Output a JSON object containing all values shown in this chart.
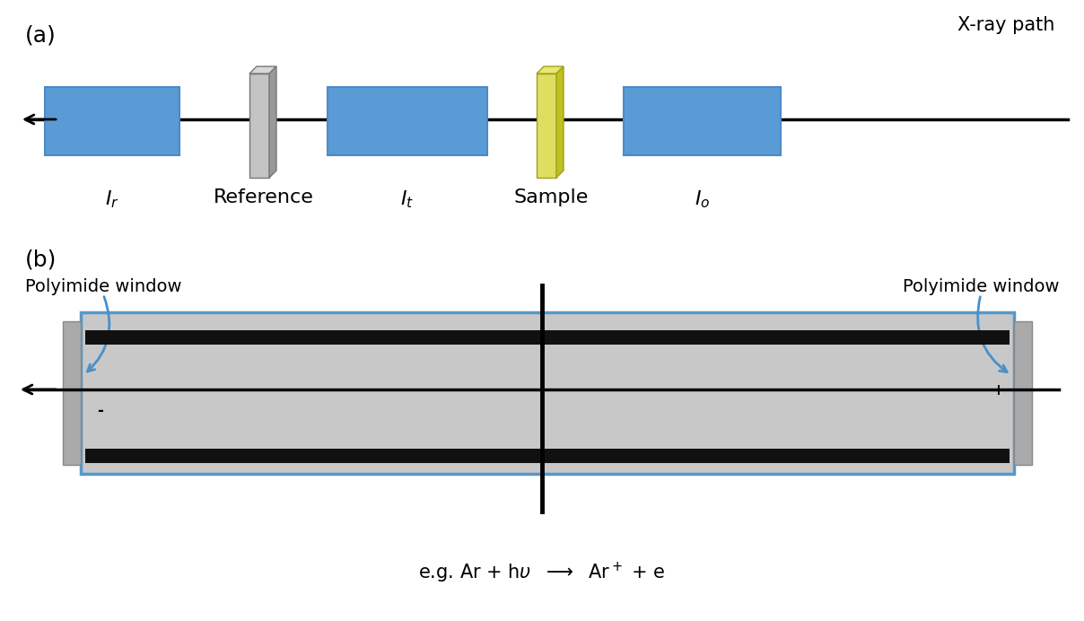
{
  "fig_width": 12.08,
  "fig_height": 6.92,
  "bg_color": "#ffffff",
  "panel_a_label": "(a)",
  "panel_b_label": "(b)",
  "xray_path_label": "X-ray path",
  "ion_chamber_color": "#c8c8c8",
  "ion_chamber_border": "#5599cc",
  "electrode_color": "#111111",
  "blue_box_color": "#5b9bd5",
  "blue_box_edge": "#4a8bc8",
  "reference_color": "#c0c0c0",
  "reference_edge": "#888888",
  "sample_color": "#dede60",
  "sample_edge": "#b0b000",
  "polyimide_window_label": "Polyimide window",
  "plus_label": "+",
  "minus_label": "-"
}
